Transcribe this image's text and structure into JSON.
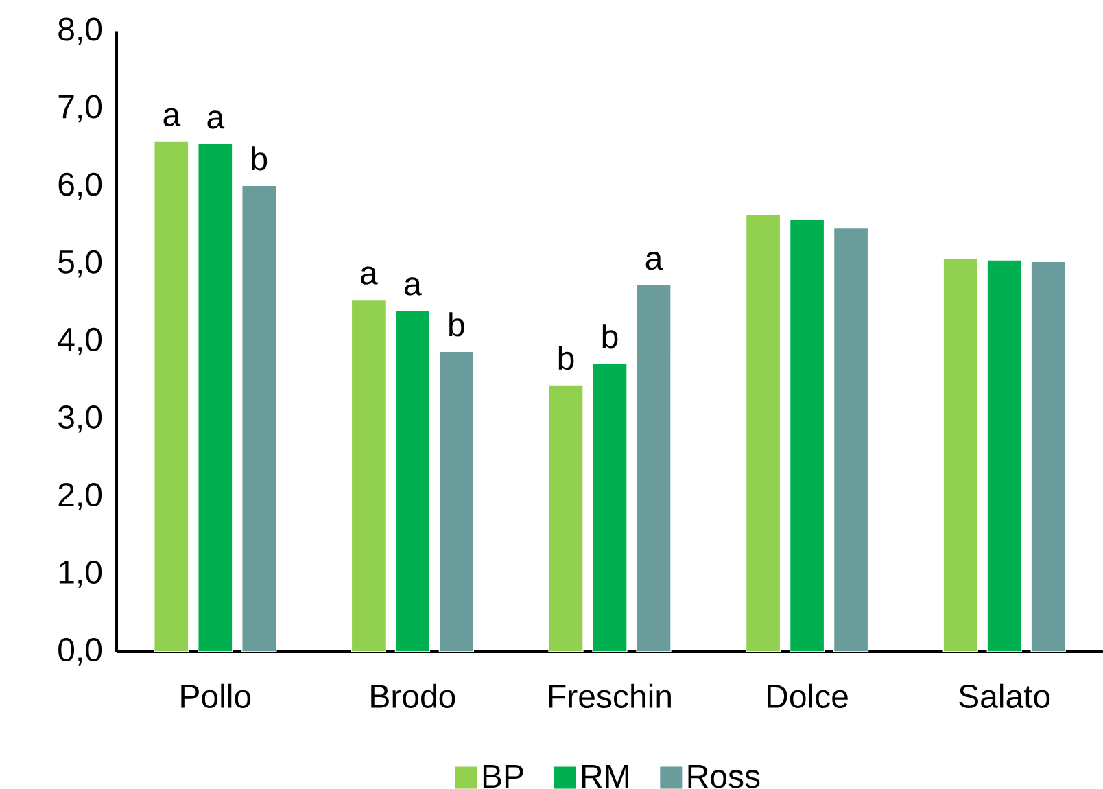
{
  "chart_data": {
    "type": "bar",
    "categories": [
      "Pollo",
      "Brodo",
      "Freschin",
      "Dolce",
      "Salato"
    ],
    "series": [
      {
        "name": "BP",
        "color": "#92d050",
        "values": [
          6.58,
          4.54,
          3.44,
          5.63,
          5.07
        ],
        "value_labels": [
          "a",
          "a",
          "b",
          null,
          null
        ]
      },
      {
        "name": "RM",
        "color": "#00b050",
        "values": [
          6.55,
          4.4,
          3.72,
          5.57,
          5.05
        ],
        "value_labels": [
          "a",
          "a",
          "b",
          null,
          null
        ]
      },
      {
        "name": "Ross",
        "color": "#699c9a",
        "values": [
          6.01,
          3.87,
          4.73,
          5.46,
          5.03
        ],
        "value_labels": [
          "b",
          "b",
          "a",
          null,
          null
        ]
      }
    ],
    "ylim": [
      0,
      8
    ],
    "yticks": [
      {
        "value": 0,
        "label": "0,0"
      },
      {
        "value": 1,
        "label": "1,0"
      },
      {
        "value": 2,
        "label": "2,0"
      },
      {
        "value": 3,
        "label": "3,0"
      },
      {
        "value": 4,
        "label": "4,0"
      },
      {
        "value": 5,
        "label": "5,0"
      },
      {
        "value": 6,
        "label": "6,0"
      },
      {
        "value": 7,
        "label": "7,0"
      },
      {
        "value": 8,
        "label": "8,0"
      }
    ],
    "legend": "bottom"
  }
}
